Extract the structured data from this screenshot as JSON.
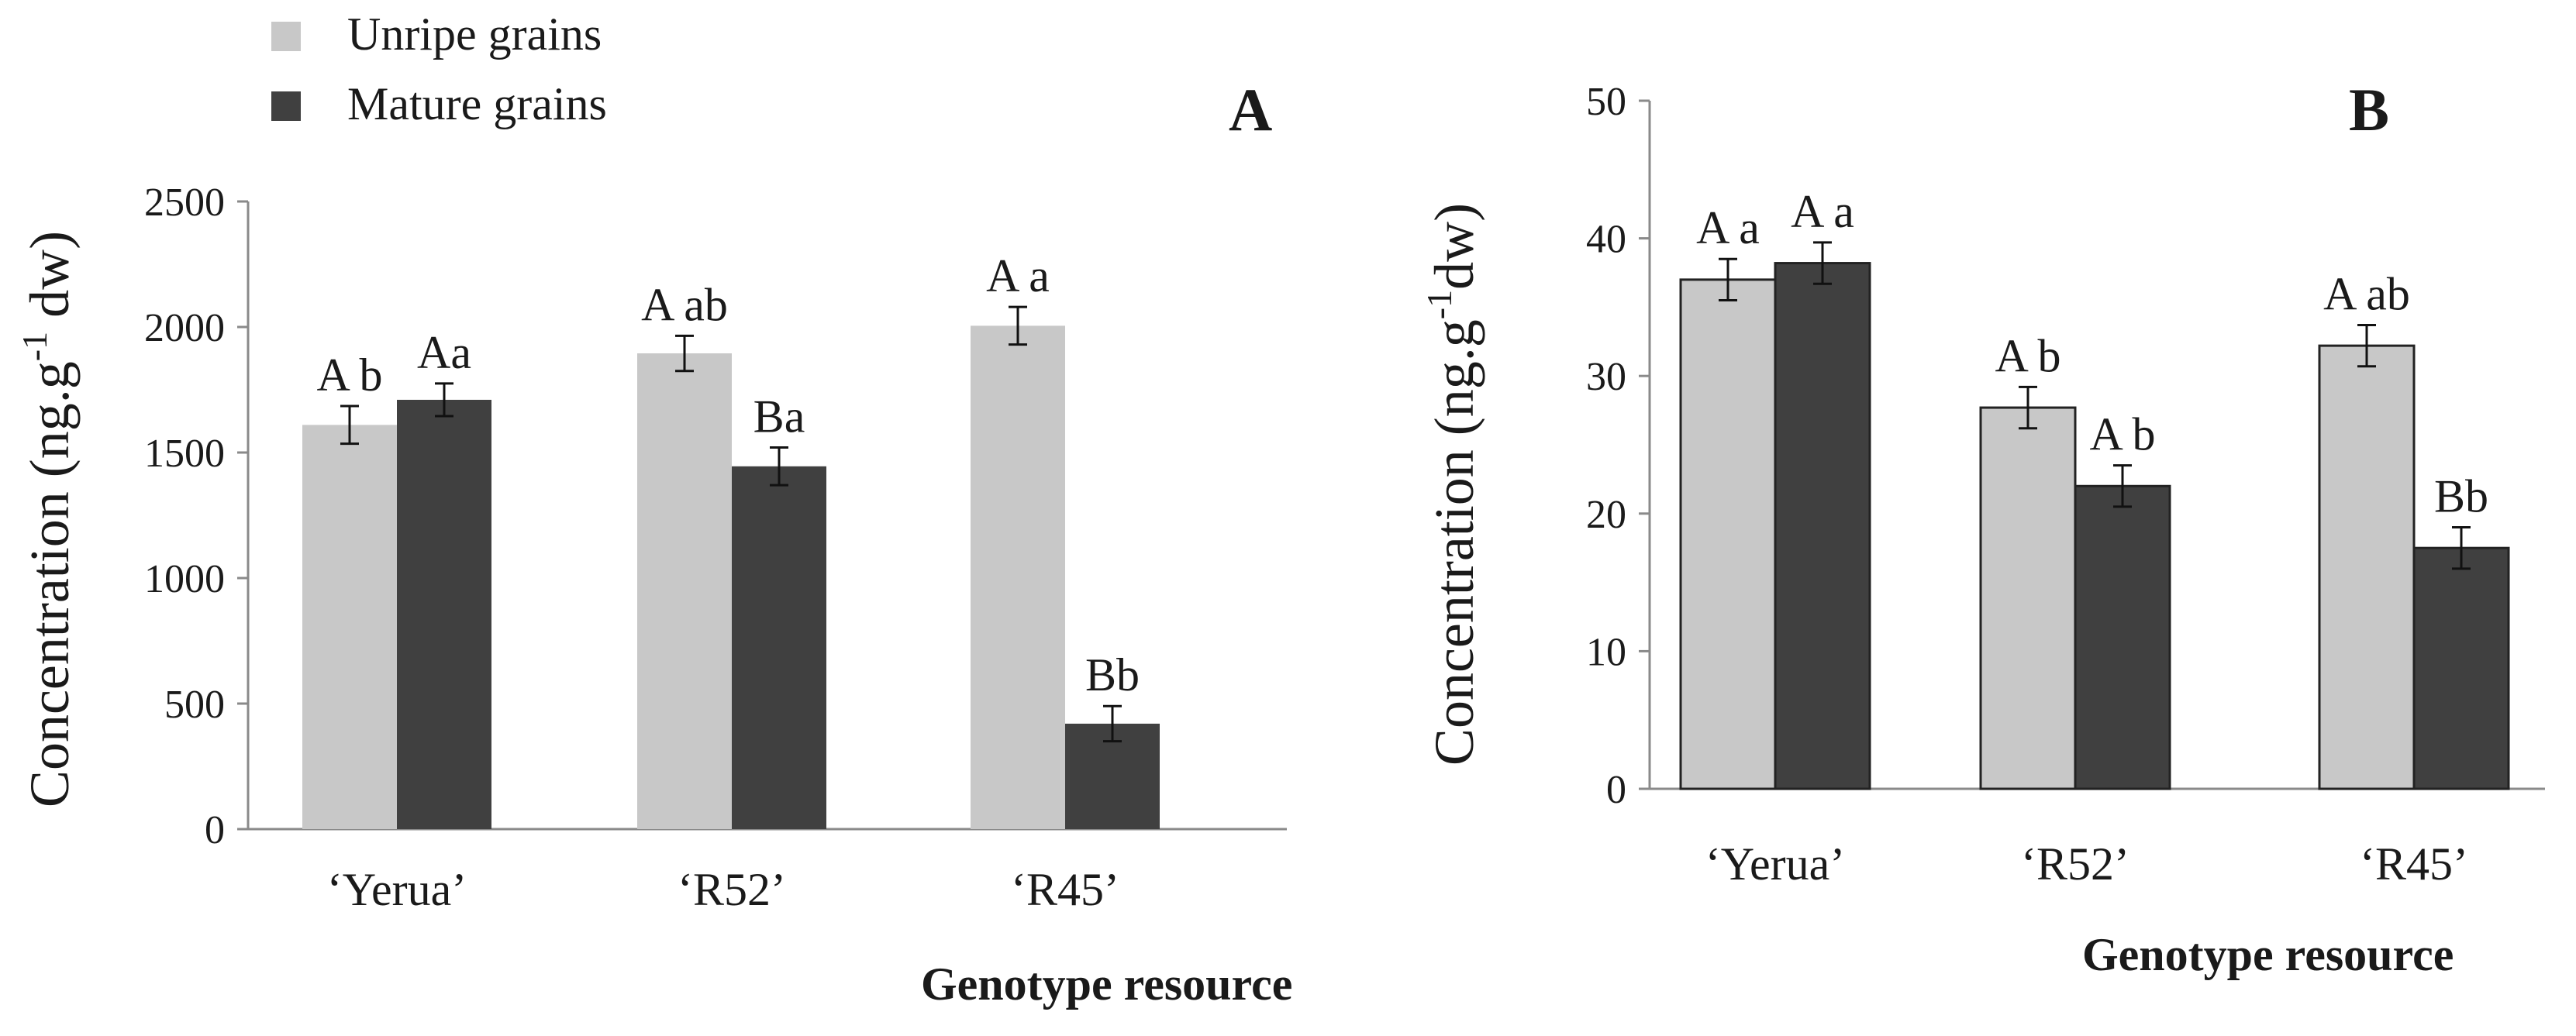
{
  "legend": {
    "items": [
      {
        "label": "Unripe grains",
        "color": "#c8c8c8"
      },
      {
        "label": "Mature grains",
        "color": "#404040"
      }
    ]
  },
  "colors": {
    "unripe": "#c8c8c8",
    "mature": "#404040",
    "axis": "#8a8a8a",
    "text": "#1a1a1a"
  },
  "chart_data": [
    {
      "type": "bar",
      "panel": "A",
      "categories": [
        "‘Yerua’",
        "‘R52’",
        "‘R45’"
      ],
      "series": [
        {
          "name": "Unripe grains",
          "values": [
            1610,
            1895,
            2005
          ],
          "errors": [
            75,
            70,
            75
          ],
          "labels": [
            "A b",
            "A ab",
            "A a"
          ]
        },
        {
          "name": "Mature grains",
          "values": [
            1710,
            1445,
            420
          ],
          "errors": [
            65,
            75,
            70
          ],
          "labels": [
            "Aa",
            "Ba",
            "Bb"
          ]
        }
      ],
      "ylabel_main": "Concentration (ng.g",
      "ylabel_sup": "-1",
      "ylabel_tail": " dw)",
      "xlabel": "Genotype resource",
      "ylim": [
        0,
        2500
      ],
      "yticks": [
        0,
        500,
        1000,
        1500,
        2000,
        2500
      ],
      "grid": false
    },
    {
      "type": "bar",
      "panel": "B",
      "categories": [
        "‘Yerua’",
        "‘R52’",
        "‘R45’"
      ],
      "series": [
        {
          "name": "Unripe grains",
          "values": [
            37,
            27.7,
            32.2
          ],
          "errors": [
            1.5,
            1.5,
            1.5
          ],
          "labels": [
            "A a",
            "A b",
            "A ab"
          ]
        },
        {
          "name": "Mature grains",
          "values": [
            38.2,
            22,
            17.5
          ],
          "errors": [
            1.5,
            1.5,
            1.5
          ],
          "labels": [
            "A a",
            "A b",
            "Bb"
          ]
        }
      ],
      "ylabel_main": "Concentration (ng.g",
      "ylabel_sup": "-1",
      "ylabel_tail": "dw)",
      "xlabel": "Genotype resource",
      "ylim": [
        0,
        50
      ],
      "yticks": [
        0,
        10,
        20,
        30,
        40,
        50
      ],
      "grid": false
    }
  ]
}
